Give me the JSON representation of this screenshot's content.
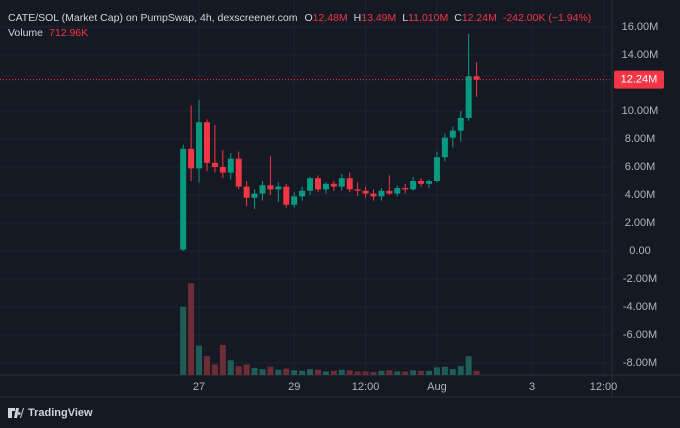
{
  "chart_data": {
    "type": "candlestick",
    "header": {
      "symbol": "CATE/SOL (Market Cap) on PumpSwap, 4h, dexscreener.com",
      "open_label": "O",
      "open": "12.48M",
      "high_label": "H",
      "high": "13.49M",
      "low_label": "L",
      "low": "11.010M",
      "close_label": "C",
      "close": "12.24M",
      "change": "-242.00K (−1.94%)",
      "volume_label": "Volume",
      "volume": "712.96K"
    },
    "x": [
      -8,
      -4,
      0,
      4,
      8,
      12,
      16,
      20,
      24,
      28,
      32,
      36,
      40,
      44,
      48,
      52,
      56,
      60,
      64,
      68,
      72,
      76,
      80,
      84,
      88,
      92,
      96,
      100,
      104,
      108,
      112,
      116,
      120,
      124,
      128,
      132,
      136,
      140
    ],
    "open": [
      0.1,
      7.3,
      5.9,
      9.2,
      6.3,
      6.0,
      5.6,
      6.6,
      4.6,
      3.8,
      4.1,
      4.7,
      4.4,
      4.6,
      3.3,
      3.9,
      4.3,
      5.2,
      4.4,
      4.8,
      4.6,
      5.2,
      4.4,
      4.3,
      4.1,
      3.9,
      4.3,
      4.1,
      4.5,
      4.4,
      5.0,
      4.8,
      5.0,
      6.7,
      8.1,
      8.6,
      9.5,
      12.48
    ],
    "high": [
      7.6,
      10.4,
      10.8,
      9.4,
      9.0,
      7.2,
      7.0,
      7.1,
      5.0,
      4.4,
      5.0,
      6.8,
      4.9,
      4.8,
      4.2,
      4.6,
      5.3,
      5.4,
      4.9,
      5.0,
      5.5,
      5.6,
      4.9,
      4.6,
      4.4,
      4.5,
      5.4,
      4.7,
      4.8,
      5.3,
      5.2,
      5.1,
      7.1,
      8.4,
      8.9,
      10.0,
      15.5,
      13.49
    ],
    "low": [
      0.0,
      5.0,
      4.9,
      5.7,
      5.6,
      5.2,
      5.1,
      4.4,
      3.2,
      3.0,
      3.6,
      4.0,
      3.5,
      3.1,
      3.1,
      3.6,
      4.0,
      4.2,
      4.1,
      4.3,
      4.3,
      4.2,
      3.9,
      3.8,
      3.6,
      3.6,
      4.0,
      3.9,
      4.1,
      4.3,
      4.6,
      4.5,
      4.9,
      6.4,
      7.4,
      7.8,
      9.3,
      11.01
    ],
    "close": [
      7.3,
      5.9,
      9.2,
      6.3,
      6.0,
      5.6,
      6.6,
      4.6,
      3.8,
      4.1,
      4.7,
      4.4,
      4.6,
      3.3,
      3.9,
      4.3,
      5.2,
      4.4,
      4.8,
      4.6,
      5.2,
      4.4,
      4.3,
      4.1,
      3.9,
      4.3,
      4.1,
      4.5,
      4.4,
      5.0,
      4.8,
      5.0,
      6.7,
      8.1,
      8.6,
      9.5,
      12.48,
      12.24
    ],
    "volume": [
      11.6,
      15.6,
      5.0,
      3.2,
      1.8,
      5.1,
      2.5,
      1.5,
      1.8,
      1.2,
      1.0,
      1.4,
      0.9,
      1.1,
      0.8,
      0.7,
      1.0,
      0.9,
      0.6,
      0.7,
      0.9,
      0.8,
      0.6,
      0.6,
      0.5,
      0.7,
      0.8,
      0.6,
      0.6,
      0.8,
      0.7,
      0.7,
      1.3,
      1.4,
      1.0,
      1.5,
      3.2,
      0.71296
    ],
    "up_color": "#089981",
    "down_color": "#f23645",
    "volume_up_color": "#1f5e57",
    "volume_down_color": "#6e2d35",
    "xlim": [
      -100.4,
      208.3
    ],
    "xticks": [
      {
        "value": 0,
        "label": "27"
      },
      {
        "value": 48,
        "label": "29"
      },
      {
        "value": 84,
        "label": "12:00"
      },
      {
        "value": 120,
        "label": "Aug"
      },
      {
        "value": 168,
        "label": "3"
      },
      {
        "value": 204,
        "label": "12:00"
      }
    ],
    "ylim": [
      -8.86,
      17.93
    ],
    "yticks": [
      {
        "value": 16,
        "label": "16.00M"
      },
      {
        "value": 14,
        "label": "14.00M"
      },
      {
        "value": 10,
        "label": "10.00M"
      },
      {
        "value": 8,
        "label": "8.00M"
      },
      {
        "value": 6,
        "label": "6.00M"
      },
      {
        "value": 4,
        "label": "4.00M"
      },
      {
        "value": 2,
        "label": "2.00M"
      },
      {
        "value": 0,
        "label": "0.00"
      },
      {
        "value": -2,
        "label": "-2.00M"
      },
      {
        "value": -4,
        "label": "-4.00M"
      },
      {
        "value": -6,
        "label": "-6.00M"
      },
      {
        "value": -8,
        "label": "-8.00M"
      }
    ],
    "volume_lim": [
      0,
      17
    ],
    "last_price": {
      "value": 12.24,
      "label": "12.24M"
    },
    "grid": true,
    "logo_text": "TradingView"
  }
}
